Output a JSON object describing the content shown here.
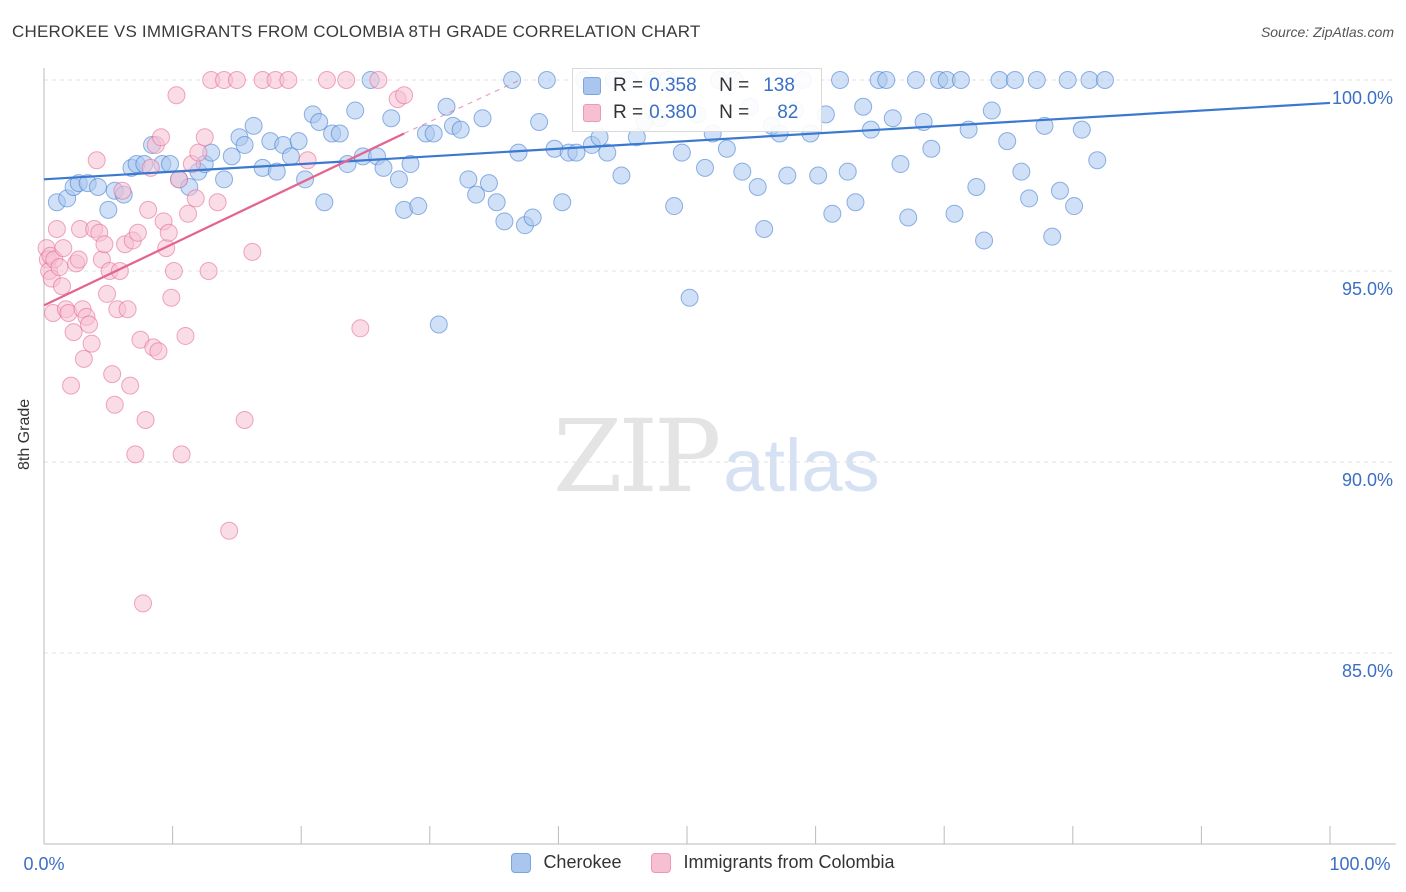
{
  "header": {
    "title": "CHEROKEE VS IMMIGRANTS FROM COLOMBIA 8TH GRADE CORRELATION CHART",
    "source": "Source: ZipAtlas.com"
  },
  "legend_top": {
    "rows": [
      {
        "r_label": "R =",
        "r_value": "0.358",
        "n_label": "N =",
        "n_value": "138",
        "color": "#aac6ee",
        "border": "#7aa6e0"
      },
      {
        "r_label": "R =",
        "r_value": "0.380",
        "n_label": "N =",
        "n_value": "82",
        "color": "#f6bfd2",
        "border": "#ee98b5"
      }
    ]
  },
  "legend_bottom": {
    "items": [
      {
        "label": "Cherokee",
        "color": "#aac6ee",
        "border": "#7aa6e0"
      },
      {
        "label": "Immigrants from Colombia",
        "color": "#f6bfd2",
        "border": "#ee98b5"
      }
    ]
  },
  "watermark": {
    "zip": "ZIP",
    "atlas": "atlas"
  },
  "chart_data": {
    "type": "scatter",
    "title": "CHEROKEE VS IMMIGRANTS FROM COLOMBIA 8TH GRADE CORRELATION CHART",
    "xlabel": "",
    "ylabel": "8th Grade",
    "xlim": [
      0,
      100
    ],
    "ylim": [
      80.0,
      100.5
    ],
    "x_tick_labels": [
      "0.0%",
      "100.0%"
    ],
    "y_ticks": [
      85.0,
      90.0,
      95.0,
      100.0
    ],
    "y_tick_labels": [
      "85.0%",
      "90.0%",
      "95.0%",
      "100.0%"
    ],
    "grid": "horizontal dashed",
    "colors": {
      "blue": "#3b78d0",
      "pink": "#e4638f",
      "blue_fill": "#aac6ee",
      "pink_fill": "#f6bfd2",
      "tick_text": "#3b6fc4"
    },
    "series": [
      {
        "name": "Cherokee",
        "color": "#3b78d0",
        "fill": "#aac6ee",
        "trend": {
          "x": [
            0,
            100
          ],
          "y": [
            97.4,
            99.4
          ]
        },
        "points": [
          [
            1.0,
            96.8
          ],
          [
            1.8,
            96.9
          ],
          [
            2.3,
            97.2
          ],
          [
            2.7,
            97.3
          ],
          [
            3.4,
            97.3
          ],
          [
            4.2,
            97.2
          ],
          [
            5.0,
            96.6
          ],
          [
            5.5,
            97.1
          ],
          [
            6.2,
            97.0
          ],
          [
            6.8,
            97.7
          ],
          [
            7.2,
            97.8
          ],
          [
            7.8,
            97.8
          ],
          [
            8.4,
            98.3
          ],
          [
            9.2,
            97.8
          ],
          [
            9.8,
            97.8
          ],
          [
            10.5,
            97.4
          ],
          [
            11.3,
            97.2
          ],
          [
            12.0,
            97.6
          ],
          [
            12.5,
            97.8
          ],
          [
            13.0,
            98.1
          ],
          [
            14.0,
            97.4
          ],
          [
            14.6,
            98.0
          ],
          [
            15.2,
            98.5
          ],
          [
            15.6,
            98.3
          ],
          [
            16.3,
            98.8
          ],
          [
            17.0,
            97.7
          ],
          [
            17.6,
            98.4
          ],
          [
            18.1,
            97.6
          ],
          [
            18.6,
            98.3
          ],
          [
            19.2,
            98.0
          ],
          [
            19.8,
            98.4
          ],
          [
            20.3,
            97.4
          ],
          [
            20.9,
            99.1
          ],
          [
            21.4,
            98.9
          ],
          [
            21.8,
            96.8
          ],
          [
            22.4,
            98.6
          ],
          [
            23.0,
            98.6
          ],
          [
            23.6,
            97.8
          ],
          [
            24.2,
            99.2
          ],
          [
            24.8,
            98.0
          ],
          [
            25.4,
            100.0
          ],
          [
            25.9,
            98.0
          ],
          [
            26.4,
            97.7
          ],
          [
            27.0,
            99.0
          ],
          [
            27.6,
            97.4
          ],
          [
            28.0,
            96.6
          ],
          [
            28.5,
            97.8
          ],
          [
            29.1,
            96.7
          ],
          [
            29.7,
            98.6
          ],
          [
            30.3,
            98.6
          ],
          [
            30.7,
            93.6
          ],
          [
            31.3,
            99.3
          ],
          [
            31.8,
            98.8
          ],
          [
            32.4,
            98.7
          ],
          [
            33.0,
            97.4
          ],
          [
            33.6,
            97.0
          ],
          [
            34.1,
            99.0
          ],
          [
            34.6,
            97.3
          ],
          [
            35.2,
            96.8
          ],
          [
            35.8,
            96.3
          ],
          [
            36.4,
            100.0
          ],
          [
            36.9,
            98.1
          ],
          [
            37.4,
            96.2
          ],
          [
            38.0,
            96.4
          ],
          [
            38.5,
            98.9
          ],
          [
            39.1,
            100.0
          ],
          [
            39.7,
            98.2
          ],
          [
            40.3,
            96.8
          ],
          [
            40.8,
            98.1
          ],
          [
            41.4,
            98.1
          ],
          [
            42.0,
            100.0
          ],
          [
            42.6,
            98.3
          ],
          [
            43.2,
            98.5
          ],
          [
            43.8,
            98.1
          ],
          [
            44.3,
            100.0
          ],
          [
            44.9,
            97.5
          ],
          [
            45.5,
            100.0
          ],
          [
            46.1,
            98.5
          ],
          [
            46.7,
            98.9
          ],
          [
            47.3,
            100.0
          ],
          [
            47.9,
            99.0
          ],
          [
            48.5,
            100.0
          ],
          [
            49.0,
            96.7
          ],
          [
            49.6,
            98.1
          ],
          [
            50.2,
            94.3
          ],
          [
            50.8,
            99.1
          ],
          [
            51.4,
            97.7
          ],
          [
            52.0,
            98.6
          ],
          [
            52.5,
            100.0
          ],
          [
            53.1,
            98.2
          ],
          [
            53.7,
            100.0
          ],
          [
            54.3,
            97.6
          ],
          [
            54.9,
            99.3
          ],
          [
            55.5,
            97.2
          ],
          [
            56.0,
            96.1
          ],
          [
            56.6,
            98.8
          ],
          [
            57.2,
            98.6
          ],
          [
            57.8,
            97.5
          ],
          [
            58.4,
            99.2
          ],
          [
            59.0,
            100.0
          ],
          [
            59.6,
            98.6
          ],
          [
            60.2,
            97.5
          ],
          [
            60.8,
            99.1
          ],
          [
            61.3,
            96.5
          ],
          [
            61.9,
            100.0
          ],
          [
            62.5,
            97.6
          ],
          [
            63.1,
            96.8
          ],
          [
            63.7,
            99.3
          ],
          [
            64.3,
            98.7
          ],
          [
            64.9,
            100.0
          ],
          [
            65.5,
            100.0
          ],
          [
            66.0,
            99.0
          ],
          [
            66.6,
            97.8
          ],
          [
            67.2,
            96.4
          ],
          [
            67.8,
            100.0
          ],
          [
            68.4,
            98.9
          ],
          [
            69.0,
            98.2
          ],
          [
            69.6,
            100.0
          ],
          [
            70.2,
            100.0
          ],
          [
            70.8,
            96.5
          ],
          [
            71.3,
            100.0
          ],
          [
            71.9,
            98.7
          ],
          [
            72.5,
            97.2
          ],
          [
            73.1,
            95.8
          ],
          [
            73.7,
            99.2
          ],
          [
            74.3,
            100.0
          ],
          [
            74.9,
            98.4
          ],
          [
            75.5,
            100.0
          ],
          [
            76.0,
            97.6
          ],
          [
            76.6,
            96.9
          ],
          [
            77.2,
            100.0
          ],
          [
            77.8,
            98.8
          ],
          [
            78.4,
            95.9
          ],
          [
            79.0,
            97.1
          ],
          [
            79.6,
            100.0
          ],
          [
            80.1,
            96.7
          ],
          [
            80.7,
            98.7
          ],
          [
            81.3,
            100.0
          ],
          [
            81.9,
            97.9
          ],
          [
            82.5,
            100.0
          ]
        ]
      },
      {
        "name": "Immigrants from Colombia",
        "color": "#e4638f",
        "fill": "#f6bfd2",
        "trend": {
          "x": [
            0,
            28
          ],
          "y": [
            94.1,
            98.6
          ]
        },
        "trend_ext": {
          "x": [
            28,
            37
          ],
          "y": [
            98.6,
            100.0
          ]
        },
        "points": [
          [
            0.2,
            95.6
          ],
          [
            0.3,
            95.3
          ],
          [
            0.4,
            95.0
          ],
          [
            0.5,
            95.4
          ],
          [
            0.6,
            94.8
          ],
          [
            0.7,
            93.9
          ],
          [
            0.8,
            95.3
          ],
          [
            1.0,
            96.1
          ],
          [
            1.2,
            95.1
          ],
          [
            1.4,
            94.6
          ],
          [
            1.5,
            95.6
          ],
          [
            1.7,
            94.0
          ],
          [
            1.9,
            93.9
          ],
          [
            2.1,
            92.0
          ],
          [
            2.3,
            93.4
          ],
          [
            2.5,
            95.2
          ],
          [
            2.7,
            95.3
          ],
          [
            2.8,
            96.1
          ],
          [
            3.0,
            94.0
          ],
          [
            3.1,
            92.7
          ],
          [
            3.3,
            93.8
          ],
          [
            3.5,
            93.6
          ],
          [
            3.7,
            93.1
          ],
          [
            3.9,
            96.1
          ],
          [
            4.1,
            97.9
          ],
          [
            4.3,
            96.0
          ],
          [
            4.5,
            95.3
          ],
          [
            4.7,
            95.7
          ],
          [
            4.9,
            94.4
          ],
          [
            5.1,
            95.0
          ],
          [
            5.3,
            92.3
          ],
          [
            5.5,
            91.5
          ],
          [
            5.7,
            94.0
          ],
          [
            5.9,
            95.0
          ],
          [
            6.1,
            97.1
          ],
          [
            6.3,
            95.7
          ],
          [
            6.5,
            94.0
          ],
          [
            6.7,
            92.0
          ],
          [
            6.9,
            95.8
          ],
          [
            7.1,
            90.2
          ],
          [
            7.3,
            96.0
          ],
          [
            7.5,
            93.2
          ],
          [
            7.7,
            86.3
          ],
          [
            7.9,
            91.1
          ],
          [
            8.1,
            96.6
          ],
          [
            8.3,
            97.7
          ],
          [
            8.5,
            93.0
          ],
          [
            8.7,
            98.3
          ],
          [
            8.9,
            92.9
          ],
          [
            9.1,
            98.5
          ],
          [
            9.3,
            96.3
          ],
          [
            9.5,
            95.6
          ],
          [
            9.7,
            96.0
          ],
          [
            9.9,
            94.3
          ],
          [
            10.1,
            95.0
          ],
          [
            10.3,
            99.6
          ],
          [
            10.5,
            97.4
          ],
          [
            10.7,
            90.2
          ],
          [
            11.0,
            93.3
          ],
          [
            11.2,
            96.5
          ],
          [
            11.5,
            97.8
          ],
          [
            11.8,
            96.9
          ],
          [
            12.0,
            98.1
          ],
          [
            12.5,
            98.5
          ],
          [
            12.8,
            95.0
          ],
          [
            13.0,
            100.0
          ],
          [
            13.5,
            96.8
          ],
          [
            14.0,
            100.0
          ],
          [
            14.4,
            88.2
          ],
          [
            15.0,
            100.0
          ],
          [
            15.6,
            91.1
          ],
          [
            16.2,
            95.5
          ],
          [
            17.0,
            100.0
          ],
          [
            18.0,
            100.0
          ],
          [
            19.0,
            100.0
          ],
          [
            20.5,
            97.9
          ],
          [
            22.0,
            100.0
          ],
          [
            23.5,
            100.0
          ],
          [
            24.6,
            93.5
          ],
          [
            26.0,
            100.0
          ],
          [
            27.5,
            99.5
          ],
          [
            28.0,
            99.6
          ]
        ]
      }
    ]
  }
}
